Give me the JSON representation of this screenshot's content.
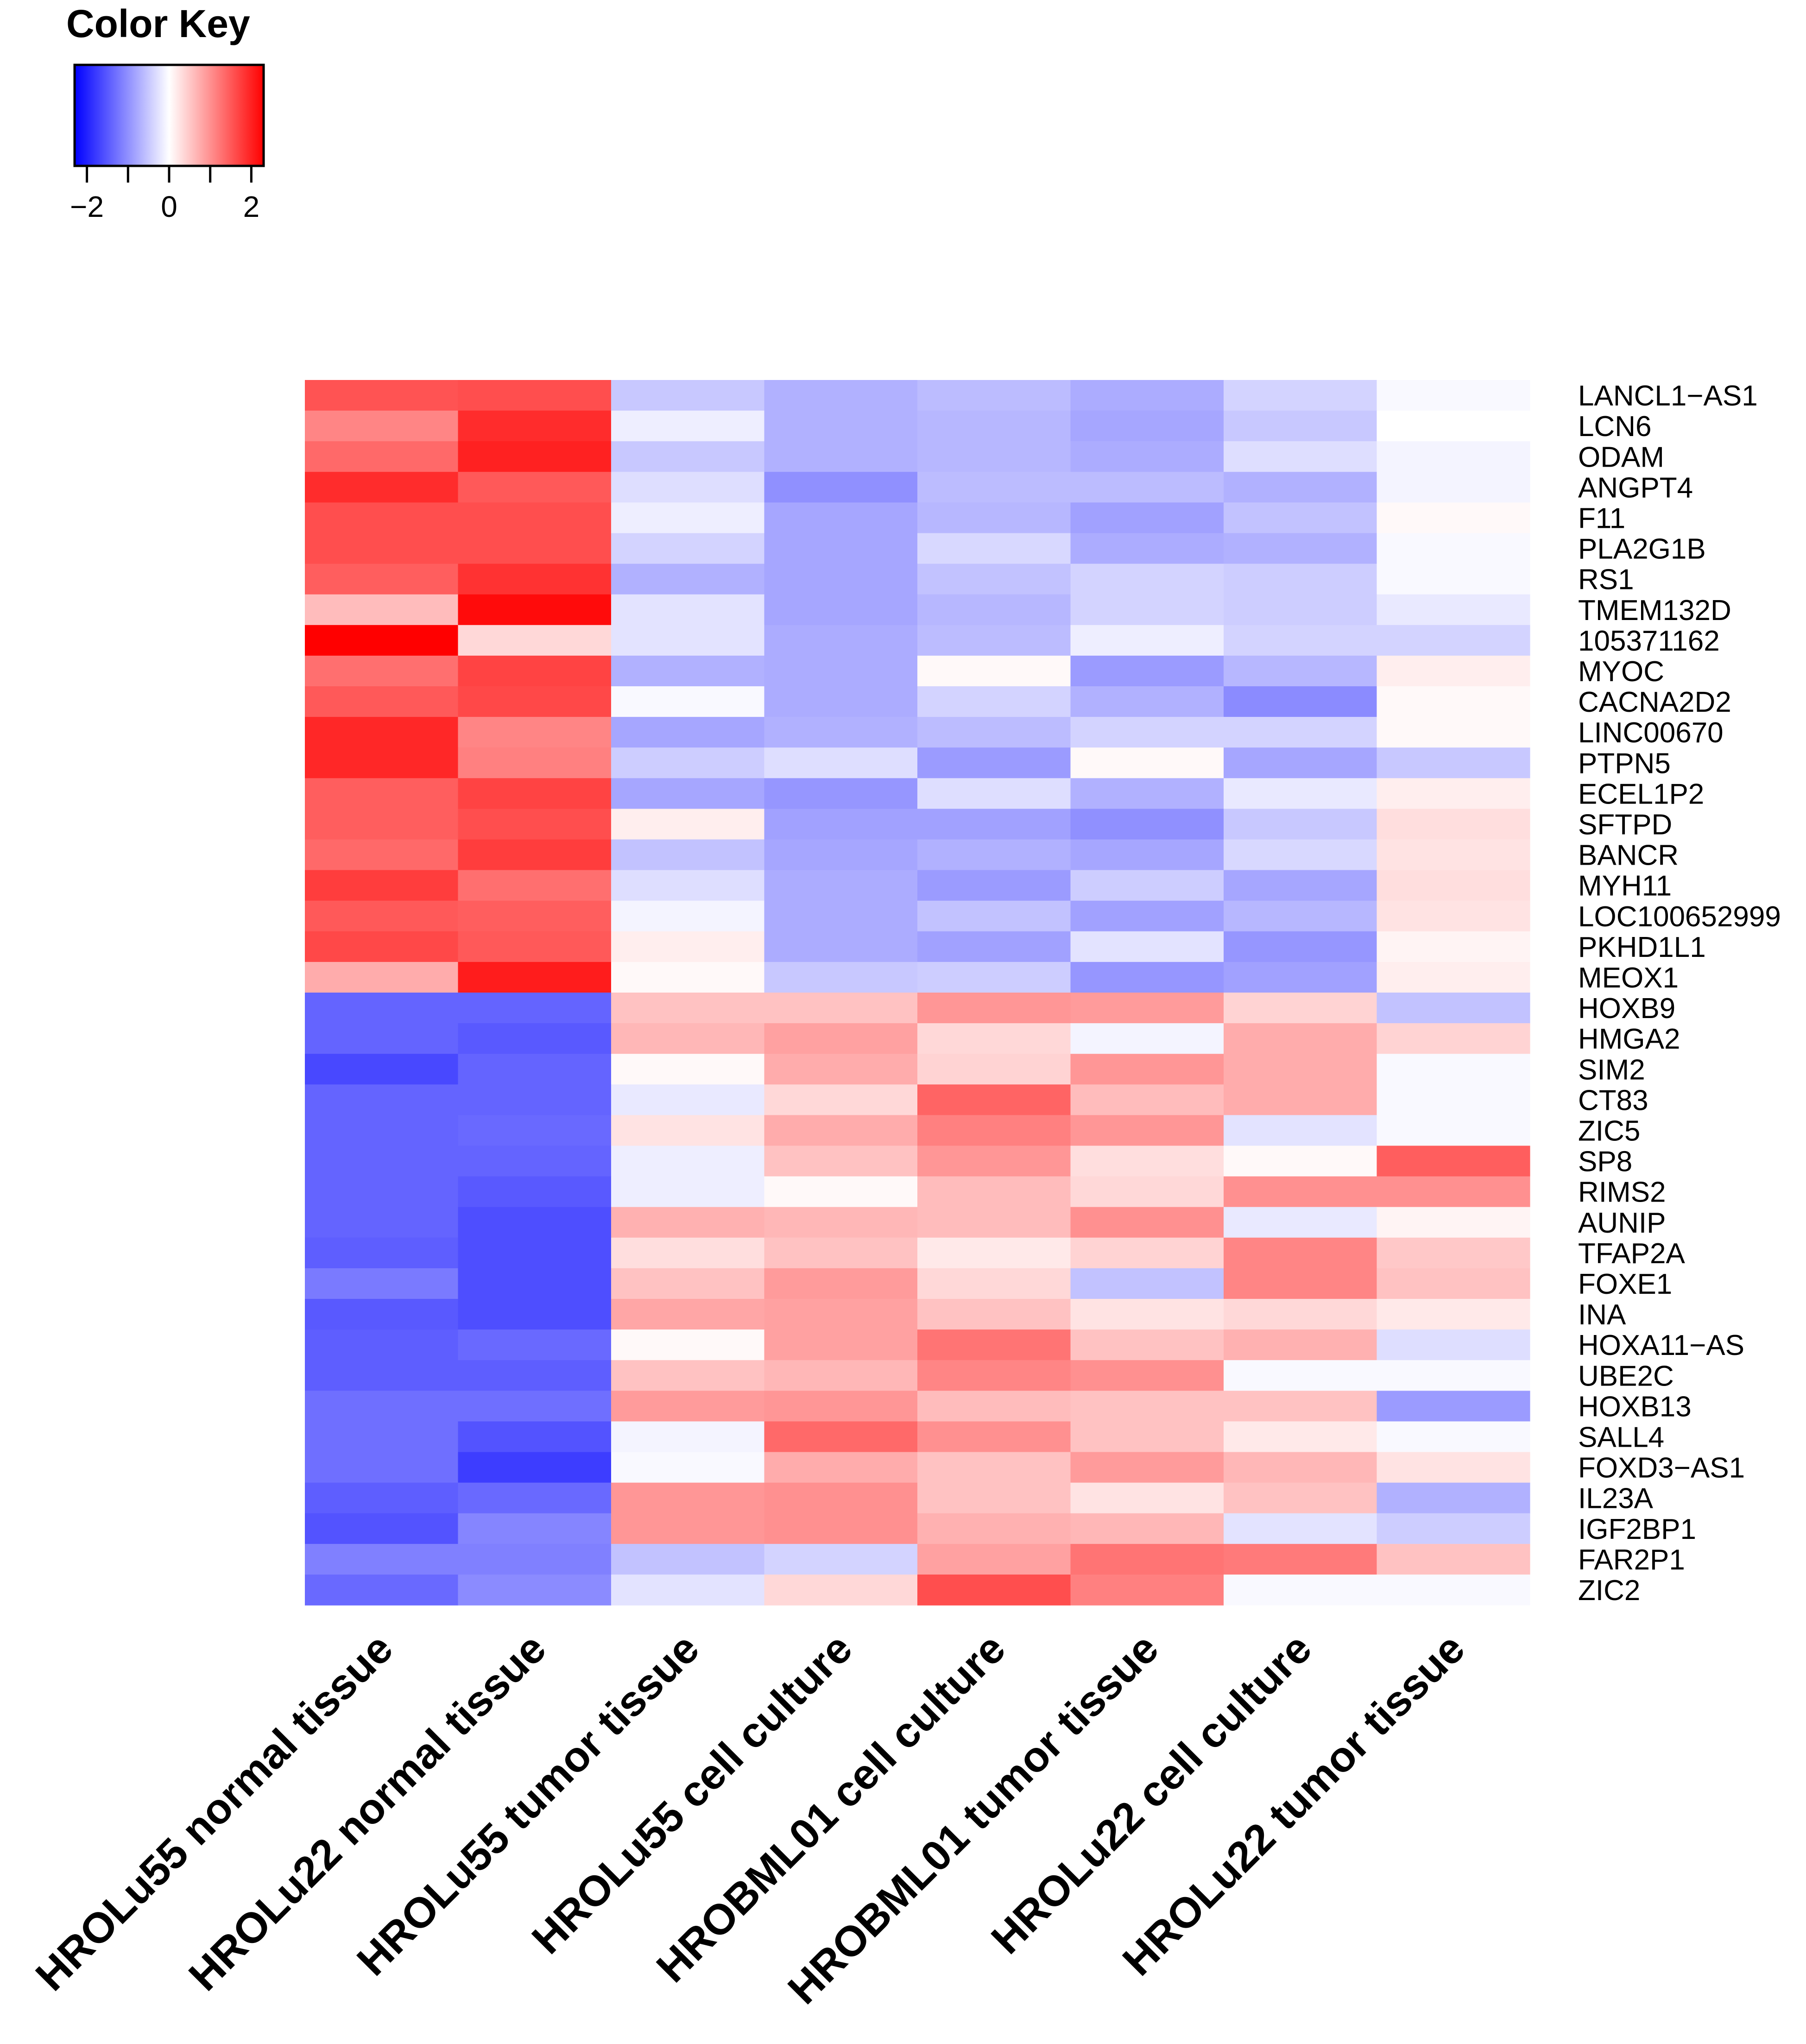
{
  "chart_data": {
    "type": "heatmap",
    "color_key": {
      "title": "Color Key",
      "range": [
        -2.3,
        2.3
      ],
      "ticks": [
        -2,
        -1,
        0,
        1,
        2
      ],
      "tick_labels": [
        "−2",
        "0",
        "2"
      ],
      "low_color": "#0000ff",
      "mid_color": "#ffffff",
      "high_color": "#ff0000"
    },
    "columns": [
      "HROLu55 normal tissue",
      "HROLu22 normal tissue",
      "HROLu55 tumor tissue",
      "HROLu55 cell culture",
      "HROBML01 cell culture",
      "HROBML01 tumor tissue",
      "HROLu22 cell culture",
      "HROLu22 tumor tissue"
    ],
    "rows": [
      "LANCL1−AS1",
      "LCN6",
      "ODAM",
      "ANGPT4",
      "F11",
      "PLA2G1B",
      "RS1",
      "TMEM132D",
      "105371162",
      "MYOC",
      "CACNA2D2",
      "LINC00670",
      "PTPN5",
      "ECEL1P2",
      "SFTPD",
      "BANCR",
      "MYH11",
      "LOC100652999",
      "PKHD1L1",
      "MEOX1",
      "HOXB9",
      "HMGA2",
      "SIM2",
      "CT83",
      "ZIC5",
      "SP8",
      "RIMS2",
      "AUNIP",
      "TFAP2A",
      "FOXE1",
      "INA",
      "HOXA11−AS",
      "UBE2C",
      "HOXB13",
      "SALL4",
      "FOXD3−AS1",
      "IL23A",
      "IGF2BP1",
      "FAR2P1",
      "ZIC2"
    ],
    "values": [
      [
        1.55,
        1.6,
        -0.5,
        -0.7,
        -0.6,
        -0.75,
        -0.4,
        -0.05
      ],
      [
        1.1,
        1.9,
        -0.15,
        -0.7,
        -0.65,
        -0.8,
        -0.5,
        0.0
      ],
      [
        1.35,
        2.0,
        -0.5,
        -0.7,
        -0.65,
        -0.75,
        -0.3,
        -0.1
      ],
      [
        1.9,
        1.5,
        -0.3,
        -1.0,
        -0.6,
        -0.6,
        -0.7,
        -0.1
      ],
      [
        1.6,
        1.6,
        -0.15,
        -0.8,
        -0.65,
        -0.85,
        -0.55,
        0.05
      ],
      [
        1.6,
        1.6,
        -0.4,
        -0.8,
        -0.35,
        -0.75,
        -0.7,
        -0.05
      ],
      [
        1.45,
        1.85,
        -0.7,
        -0.8,
        -0.55,
        -0.4,
        -0.45,
        -0.05
      ],
      [
        0.6,
        2.2,
        -0.25,
        -0.8,
        -0.65,
        -0.4,
        -0.45,
        -0.2
      ],
      [
        2.3,
        0.35,
        -0.25,
        -0.75,
        -0.6,
        -0.15,
        -0.4,
        -0.4
      ],
      [
        1.3,
        1.7,
        -0.7,
        -0.75,
        0.05,
        -0.9,
        -0.65,
        0.15
      ],
      [
        1.5,
        1.65,
        -0.05,
        -0.75,
        -0.4,
        -0.7,
        -1.05,
        0.05
      ],
      [
        1.95,
        1.1,
        -0.8,
        -0.7,
        -0.6,
        -0.4,
        -0.4,
        0.05
      ],
      [
        1.95,
        1.15,
        -0.45,
        -0.3,
        -0.9,
        0.05,
        -0.8,
        -0.5
      ],
      [
        1.45,
        1.7,
        -0.8,
        -0.95,
        -0.3,
        -0.7,
        -0.2,
        0.15
      ],
      [
        1.45,
        1.6,
        0.15,
        -0.85,
        -0.85,
        -1.0,
        -0.5,
        0.3
      ],
      [
        1.35,
        1.75,
        -0.55,
        -0.8,
        -0.7,
        -0.8,
        -0.35,
        0.25
      ],
      [
        1.75,
        1.3,
        -0.3,
        -0.75,
        -0.9,
        -0.45,
        -0.8,
        0.3
      ],
      [
        1.5,
        1.45,
        -0.1,
        -0.75,
        -0.55,
        -0.85,
        -0.65,
        0.25
      ],
      [
        1.65,
        1.5,
        0.15,
        -0.75,
        -0.85,
        -0.25,
        -0.95,
        0.1
      ],
      [
        0.75,
        2.05,
        0.05,
        -0.5,
        -0.45,
        -0.95,
        -0.85,
        0.15
      ],
      [
        -1.4,
        -1.4,
        0.55,
        0.55,
        0.95,
        0.9,
        0.4,
        -0.55
      ],
      [
        -1.4,
        -1.5,
        0.65,
        0.85,
        0.35,
        -0.1,
        0.75,
        0.4
      ],
      [
        -1.65,
        -1.4,
        0.05,
        0.75,
        0.4,
        0.95,
        0.75,
        -0.05
      ],
      [
        -1.4,
        -1.4,
        -0.2,
        0.35,
        1.4,
        0.6,
        0.75,
        -0.05
      ],
      [
        -1.4,
        -1.35,
        0.25,
        0.75,
        1.15,
        0.95,
        -0.25,
        -0.05
      ],
      [
        -1.4,
        -1.4,
        -0.15,
        0.55,
        0.95,
        0.3,
        0.05,
        1.45
      ],
      [
        -1.4,
        -1.5,
        -0.15,
        0.05,
        0.6,
        0.35,
        1.0,
        1.0
      ],
      [
        -1.4,
        -1.6,
        0.7,
        0.65,
        0.6,
        1.0,
        -0.2,
        0.1
      ],
      [
        -1.45,
        -1.6,
        0.3,
        0.55,
        0.2,
        0.4,
        1.1,
        0.5
      ],
      [
        -1.2,
        -1.6,
        0.55,
        0.9,
        0.35,
        -0.55,
        1.1,
        0.55
      ],
      [
        -1.5,
        -1.6,
        0.8,
        0.85,
        0.55,
        0.25,
        0.35,
        0.2
      ],
      [
        -1.45,
        -1.35,
        0.05,
        0.85,
        1.25,
        0.55,
        0.7,
        -0.3
      ],
      [
        -1.45,
        -1.45,
        0.55,
        0.65,
        1.1,
        1.0,
        -0.05,
        -0.05
      ],
      [
        -1.3,
        -1.3,
        0.9,
        0.95,
        0.6,
        0.55,
        0.55,
        -0.9
      ],
      [
        -1.3,
        -1.55,
        -0.1,
        1.35,
        1.0,
        0.55,
        0.2,
        -0.05
      ],
      [
        -1.3,
        -1.75,
        -0.05,
        0.75,
        0.55,
        0.9,
        0.65,
        0.25
      ],
      [
        -1.45,
        -1.35,
        0.95,
        1.0,
        0.55,
        0.25,
        0.55,
        -0.7
      ],
      [
        -1.55,
        -1.1,
        0.95,
        1.0,
        0.7,
        0.65,
        -0.25,
        -0.45
      ],
      [
        -1.15,
        -1.15,
        -0.55,
        -0.4,
        0.85,
        1.25,
        1.2,
        0.55
      ],
      [
        -1.35,
        -1.05,
        -0.25,
        0.35,
        1.6,
        1.15,
        -0.05,
        -0.05
      ]
    ]
  }
}
